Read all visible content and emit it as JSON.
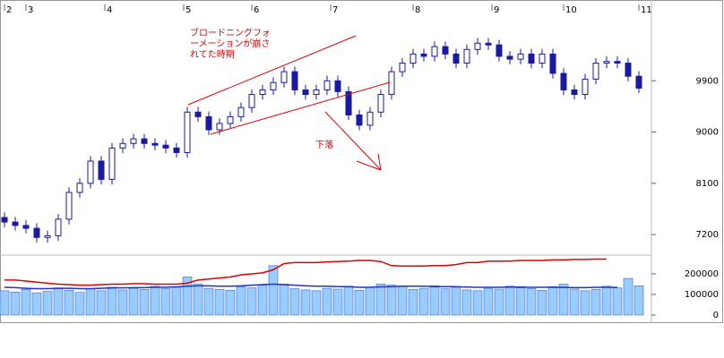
{
  "chart_data": [
    {
      "type": "candlestick",
      "x": [
        0,
        3,
        6,
        9,
        12,
        15,
        18,
        21,
        24,
        27,
        30,
        33,
        36,
        39,
        42,
        45,
        48,
        51,
        54,
        57,
        60,
        63,
        66,
        69,
        72,
        75,
        78,
        81,
        84,
        87,
        90,
        93,
        96,
        99,
        102,
        105,
        108,
        111,
        114,
        117,
        120,
        123,
        126,
        129,
        132,
        135,
        138,
        141,
        144,
        147,
        150,
        153,
        156,
        159,
        162,
        165,
        168,
        171,
        174,
        177
      ],
      "open": [
        7500,
        7420,
        7360,
        7310,
        7150,
        7180,
        7470,
        7940,
        8100,
        8490,
        8170,
        8720,
        8800,
        8880,
        8800,
        8770,
        8720,
        8640,
        9350,
        9270,
        9040,
        9150,
        9270,
        9430,
        9660,
        9740,
        9870,
        10060,
        9740,
        9660,
        9740,
        9900,
        9710,
        9300,
        9120,
        9350,
        9660,
        10060,
        10210,
        10370,
        10330,
        10500,
        10370,
        10210,
        10450,
        10560,
        10530,
        10330,
        10280,
        10370,
        10210,
        10370,
        10030,
        9740,
        9660,
        9930,
        10210,
        10240,
        10210,
        9980
      ],
      "high": [
        7590,
        7510,
        7450,
        7400,
        7270,
        7560,
        8030,
        8190,
        8580,
        8580,
        8810,
        8890,
        8970,
        8970,
        8890,
        8860,
        8810,
        9440,
        9440,
        9360,
        9240,
        9360,
        9520,
        9750,
        9830,
        9960,
        10150,
        10150,
        9830,
        9830,
        9990,
        9990,
        9800,
        9390,
        9440,
        9750,
        10150,
        10300,
        10460,
        10460,
        10590,
        10590,
        10460,
        10540,
        10650,
        10650,
        10620,
        10420,
        10460,
        10460,
        10460,
        10460,
        10120,
        9830,
        10020,
        10300,
        10330,
        10330,
        10300,
        10070
      ],
      "low": [
        7330,
        7270,
        7220,
        7060,
        7060,
        7090,
        7380,
        7850,
        8010,
        8080,
        8080,
        8630,
        8710,
        8710,
        8680,
        8630,
        8550,
        8550,
        9180,
        8950,
        8950,
        9060,
        9180,
        9340,
        9570,
        9650,
        9780,
        9650,
        9570,
        9570,
        9650,
        9620,
        9210,
        9030,
        9030,
        9260,
        9570,
        9970,
        10120,
        10240,
        10240,
        10280,
        10120,
        10120,
        10360,
        10440,
        10240,
        10190,
        10190,
        10120,
        10120,
        9940,
        9650,
        9570,
        9570,
        9840,
        10120,
        10120,
        9890,
        9680
      ],
      "close": [
        7420,
        7360,
        7310,
        7150,
        7180,
        7470,
        7940,
        8100,
        8490,
        8170,
        8720,
        8800,
        8880,
        8800,
        8770,
        8720,
        8640,
        9350,
        9270,
        9040,
        9150,
        9270,
        9430,
        9660,
        9740,
        9870,
        10060,
        9740,
        9660,
        9740,
        9900,
        9710,
        9300,
        9120,
        9350,
        9660,
        10060,
        10210,
        10370,
        10330,
        10500,
        10370,
        10210,
        10450,
        10560,
        10530,
        10330,
        10280,
        10370,
        10210,
        10370,
        10030,
        9740,
        9660,
        9930,
        10210,
        10240,
        10210,
        9980,
        9770
      ],
      "up_color": "#ffffff",
      "down_color": "#1a1aa0",
      "edge_color": "#1a1aa0",
      "xlim": [
        -1.25,
        179.75
      ],
      "xticks": [
        {
          "value": 0,
          "label": "2"
        },
        {
          "value": 6,
          "label": "3"
        },
        {
          "value": 28,
          "label": "4"
        },
        {
          "value": 50,
          "label": "5"
        },
        {
          "value": 69,
          "label": "6"
        },
        {
          "value": 91,
          "label": "7"
        },
        {
          "value": 114,
          "label": "8"
        },
        {
          "value": 136,
          "label": "9"
        },
        {
          "value": 156,
          "label": "10"
        },
        {
          "value": 177,
          "label": "11"
        }
      ],
      "ylim": [
        6840,
        11240
      ],
      "yticks": [
        7200,
        8100,
        9000,
        9900
      ],
      "annotations": [
        "ブロードニングフォ",
        "ーメーションが崩さ",
        "れてた時期",
        "下落"
      ]
    },
    {
      "type": "bar",
      "x": [
        0,
        3,
        6,
        9,
        12,
        15,
        18,
        21,
        24,
        27,
        30,
        33,
        36,
        39,
        42,
        45,
        48,
        51,
        54,
        57,
        60,
        63,
        66,
        69,
        72,
        75,
        78,
        81,
        84,
        87,
        90,
        93,
        96,
        99,
        102,
        105,
        108,
        111,
        114,
        117,
        120,
        123,
        126,
        129,
        132,
        135,
        138,
        141,
        144,
        147,
        150,
        153,
        156,
        159,
        162,
        165,
        168,
        171,
        174,
        177
      ],
      "values": [
        118000,
        112000,
        125000,
        108000,
        115000,
        132000,
        120000,
        110000,
        128000,
        118000,
        135000,
        122000,
        130000,
        125000,
        140000,
        128000,
        135000,
        185000,
        150000,
        130000,
        125000,
        120000,
        138000,
        132000,
        145000,
        240000,
        150000,
        128000,
        122000,
        118000,
        130000,
        126000,
        140000,
        120000,
        135000,
        150000,
        145000,
        138000,
        125000,
        130000,
        142000,
        128000,
        135000,
        122000,
        118000,
        130000,
        126000,
        140000,
        132000,
        128000,
        120000,
        138000,
        150000,
        126000,
        118000,
        125000,
        140000,
        132000,
        178000,
        142000
      ],
      "color": "#99ccff",
      "edge_color": "#3366cc",
      "lines": [
        {
          "color": "#e00000",
          "values": [
            170000,
            170000,
            165000,
            160000,
            155000,
            150000,
            148000,
            145000,
            145000,
            148000,
            150000,
            150000,
            152000,
            152000,
            150000,
            150000,
            150000,
            155000,
            170000,
            175000,
            180000,
            185000,
            195000,
            200000,
            205000,
            220000,
            250000,
            255000,
            255000,
            255000,
            258000,
            260000,
            262000,
            265000,
            265000,
            260000,
            240000,
            238000,
            238000,
            238000,
            240000,
            240000,
            245000,
            255000,
            255000,
            262000,
            262000,
            262000,
            265000,
            265000,
            265000,
            268000,
            268000,
            270000,
            270000,
            272000,
            272000,
            null,
            null,
            null
          ]
        },
        {
          "color": "#2233cc",
          "values": [
            135000,
            133000,
            130000,
            128000,
            128000,
            130000,
            130000,
            128000,
            128000,
            130000,
            132000,
            132000,
            133000,
            133000,
            135000,
            135000,
            137000,
            140000,
            142000,
            142000,
            140000,
            140000,
            142000,
            145000,
            148000,
            150000,
            148000,
            145000,
            142000,
            140000,
            140000,
            138000,
            138000,
            135000,
            135000,
            137000,
            138000,
            140000,
            140000,
            140000,
            138000,
            138000,
            138000,
            136000,
            135000,
            135000,
            135000,
            136000,
            136000,
            135000,
            135000,
            135000,
            134000,
            133000,
            133000,
            135000,
            135000,
            134000,
            null,
            null
          ]
        }
      ],
      "ylim": [
        0,
        300000
      ],
      "yticks": [
        0,
        100000,
        200000
      ]
    }
  ]
}
